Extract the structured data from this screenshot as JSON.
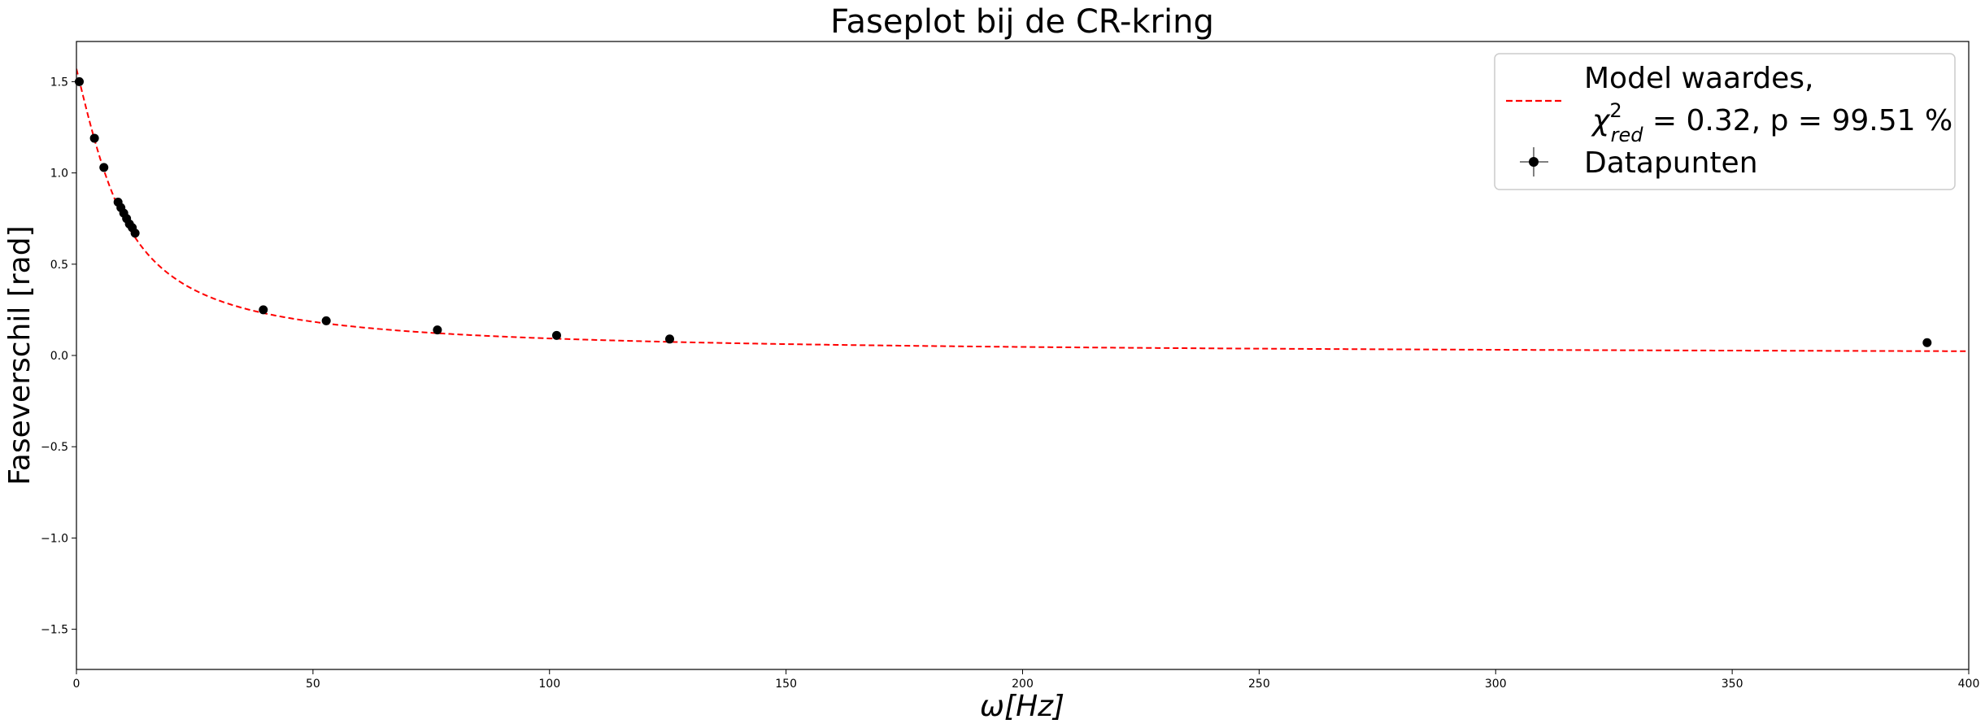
{
  "chart_data": {
    "type": "scatter",
    "title": "Faseplot bij de CR-kring",
    "xlabel": "ω[Hz]",
    "ylabel": "Faseverschil [rad]",
    "xlim": [
      0,
      400
    ],
    "ylim": [
      -1.72,
      1.72
    ],
    "x_ticks": [
      0,
      50,
      100,
      150,
      200,
      250,
      300,
      350,
      400
    ],
    "y_ticks": [
      -1.5,
      -1.0,
      -0.5,
      0.0,
      0.5,
      1.0,
      1.5
    ],
    "x_tick_labels": [
      "0",
      "50",
      "100",
      "150",
      "200",
      "250",
      "300",
      "350",
      "400"
    ],
    "y_tick_labels": [
      "−1.5",
      "−1.0",
      "−0.5",
      "0.0",
      "0.5",
      "1.0",
      "1.5"
    ],
    "grid": false,
    "legend_position": "top-right",
    "series": [
      {
        "name": "Datapunten",
        "kind": "errorbar-points",
        "color": "#000000",
        "x": [
          0.6,
          3.8,
          5.8,
          8.8,
          9.4,
          10.0,
          10.6,
          11.2,
          11.8,
          12.4,
          39.5,
          52.8,
          76.3,
          101.5,
          125.4,
          391.2
        ],
        "y": [
          1.5,
          1.19,
          1.03,
          0.84,
          0.81,
          0.78,
          0.75,
          0.72,
          0.7,
          0.67,
          0.25,
          0.19,
          0.14,
          0.11,
          0.09,
          0.07
        ]
      },
      {
        "name_line1": "Model waardes,",
        "name_line2": "χ²red = 0.32, p = 99.51 %",
        "kind": "model-curve",
        "color": "#ff0000",
        "line_style": "dashed",
        "curve_constant": 9.35,
        "curve_start_y": 1.57
      }
    ]
  },
  "legend": {
    "model_line1": "Model waardes,",
    "model_chi": "χ",
    "model_sup": "2",
    "model_sub": "red",
    "model_rest": " = 0.32, p = 99.51 %",
    "data_label": "Datapunten"
  }
}
